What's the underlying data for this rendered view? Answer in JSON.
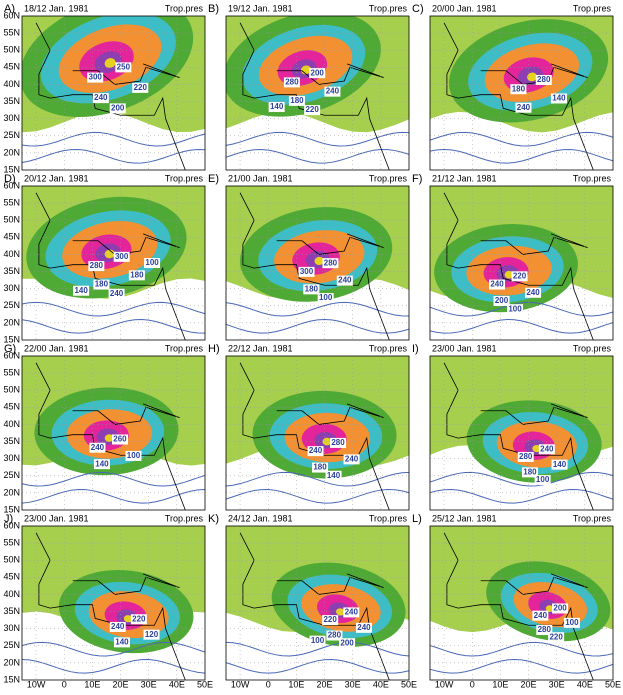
{
  "panels": [
    {
      "label": "A)",
      "date": "18/12  Jan. 1981",
      "title": "Trop.pres",
      "contour_labels": [
        "300",
        "250",
        "240",
        "220",
        "200"
      ]
    },
    {
      "label": "B)",
      "date": "19/12  Jan. 1981",
      "title": "Trop.pres",
      "contour_labels": [
        "280",
        "200",
        "180",
        "240",
        "220",
        "140"
      ]
    },
    {
      "label": "C)",
      "date": "20/00  Jan. 1981",
      "title": "Trop.pres",
      "contour_labels": [
        "180",
        "280",
        "240",
        "140"
      ]
    },
    {
      "label": "D)",
      "date": "20/12  Jan. 1981",
      "title": "Trop.pres",
      "contour_labels": [
        "280",
        "300",
        "180",
        "180",
        "240",
        "140",
        "100"
      ]
    },
    {
      "label": "E)",
      "date": "21/00  Jan. 1981",
      "title": "Trop.pres",
      "contour_labels": [
        "300",
        "280",
        "180",
        "240",
        "100"
      ]
    },
    {
      "label": "F)",
      "date": "21/12  Jan. 1981",
      "title": "Trop.pres",
      "contour_labels": [
        "240",
        "220",
        "200",
        "240",
        "100"
      ]
    },
    {
      "label": "G)",
      "date": "22/00  Jan. 1981",
      "title": "Trop.pres",
      "contour_labels": [
        "240",
        "260",
        "140",
        "100"
      ]
    },
    {
      "label": "H)",
      "date": "22/12  Jan. 1981",
      "title": "Trop.pres",
      "contour_labels": [
        "240",
        "280",
        "180",
        "240",
        "140"
      ]
    },
    {
      "label": "I)",
      "date": "23/00  Jan. 1981",
      "title": "Trop.pres",
      "contour_labels": [
        "280",
        "240",
        "180",
        "140",
        "100"
      ]
    },
    {
      "label": "J)",
      "date": "23/00  Jan. 1981",
      "title": "Trop.pres",
      "contour_labels": [
        "240",
        "220",
        "140",
        "120"
      ]
    },
    {
      "label": "K)",
      "date": "24/12  Jan. 1981",
      "title": "Trop.pres",
      "contour_labels": [
        "220",
        "240",
        "280",
        "240",
        "200",
        "100"
      ]
    },
    {
      "label": "L)",
      "date": "25/12  Jan. 1981",
      "title": "Trop.pres",
      "contour_labels": [
        "240",
        "200",
        "280",
        "100",
        "220"
      ]
    }
  ],
  "axes": {
    "y_labels": [
      "60N",
      "55N",
      "50N",
      "45N",
      "40N",
      "35N",
      "30N",
      "25N",
      "20N",
      "15N"
    ],
    "x_labels": [
      "10W",
      "0",
      "10E",
      "20E",
      "30E",
      "40E",
      "50E"
    ]
  }
}
